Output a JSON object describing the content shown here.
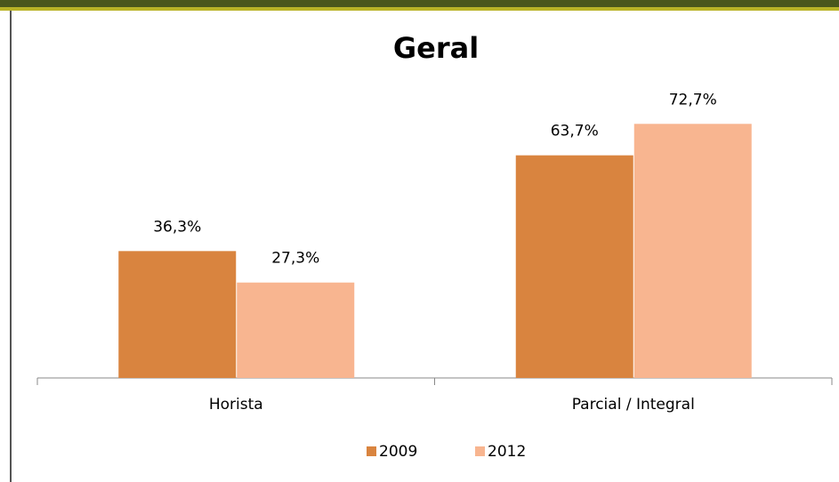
{
  "chart_data": {
    "type": "bar",
    "title": "Geral",
    "categories": [
      "Horista",
      "Parcial / Integral"
    ],
    "series": [
      {
        "name": "2009",
        "color": "#d9843f",
        "values": [
          36.3,
          63.7
        ],
        "value_labels": [
          "36,3%",
          "63,7%"
        ]
      },
      {
        "name": "2012",
        "color": "#f8b590",
        "values": [
          27.3,
          72.7
        ],
        "value_labels": [
          "27,3%",
          "72,7%"
        ]
      }
    ]
  }
}
